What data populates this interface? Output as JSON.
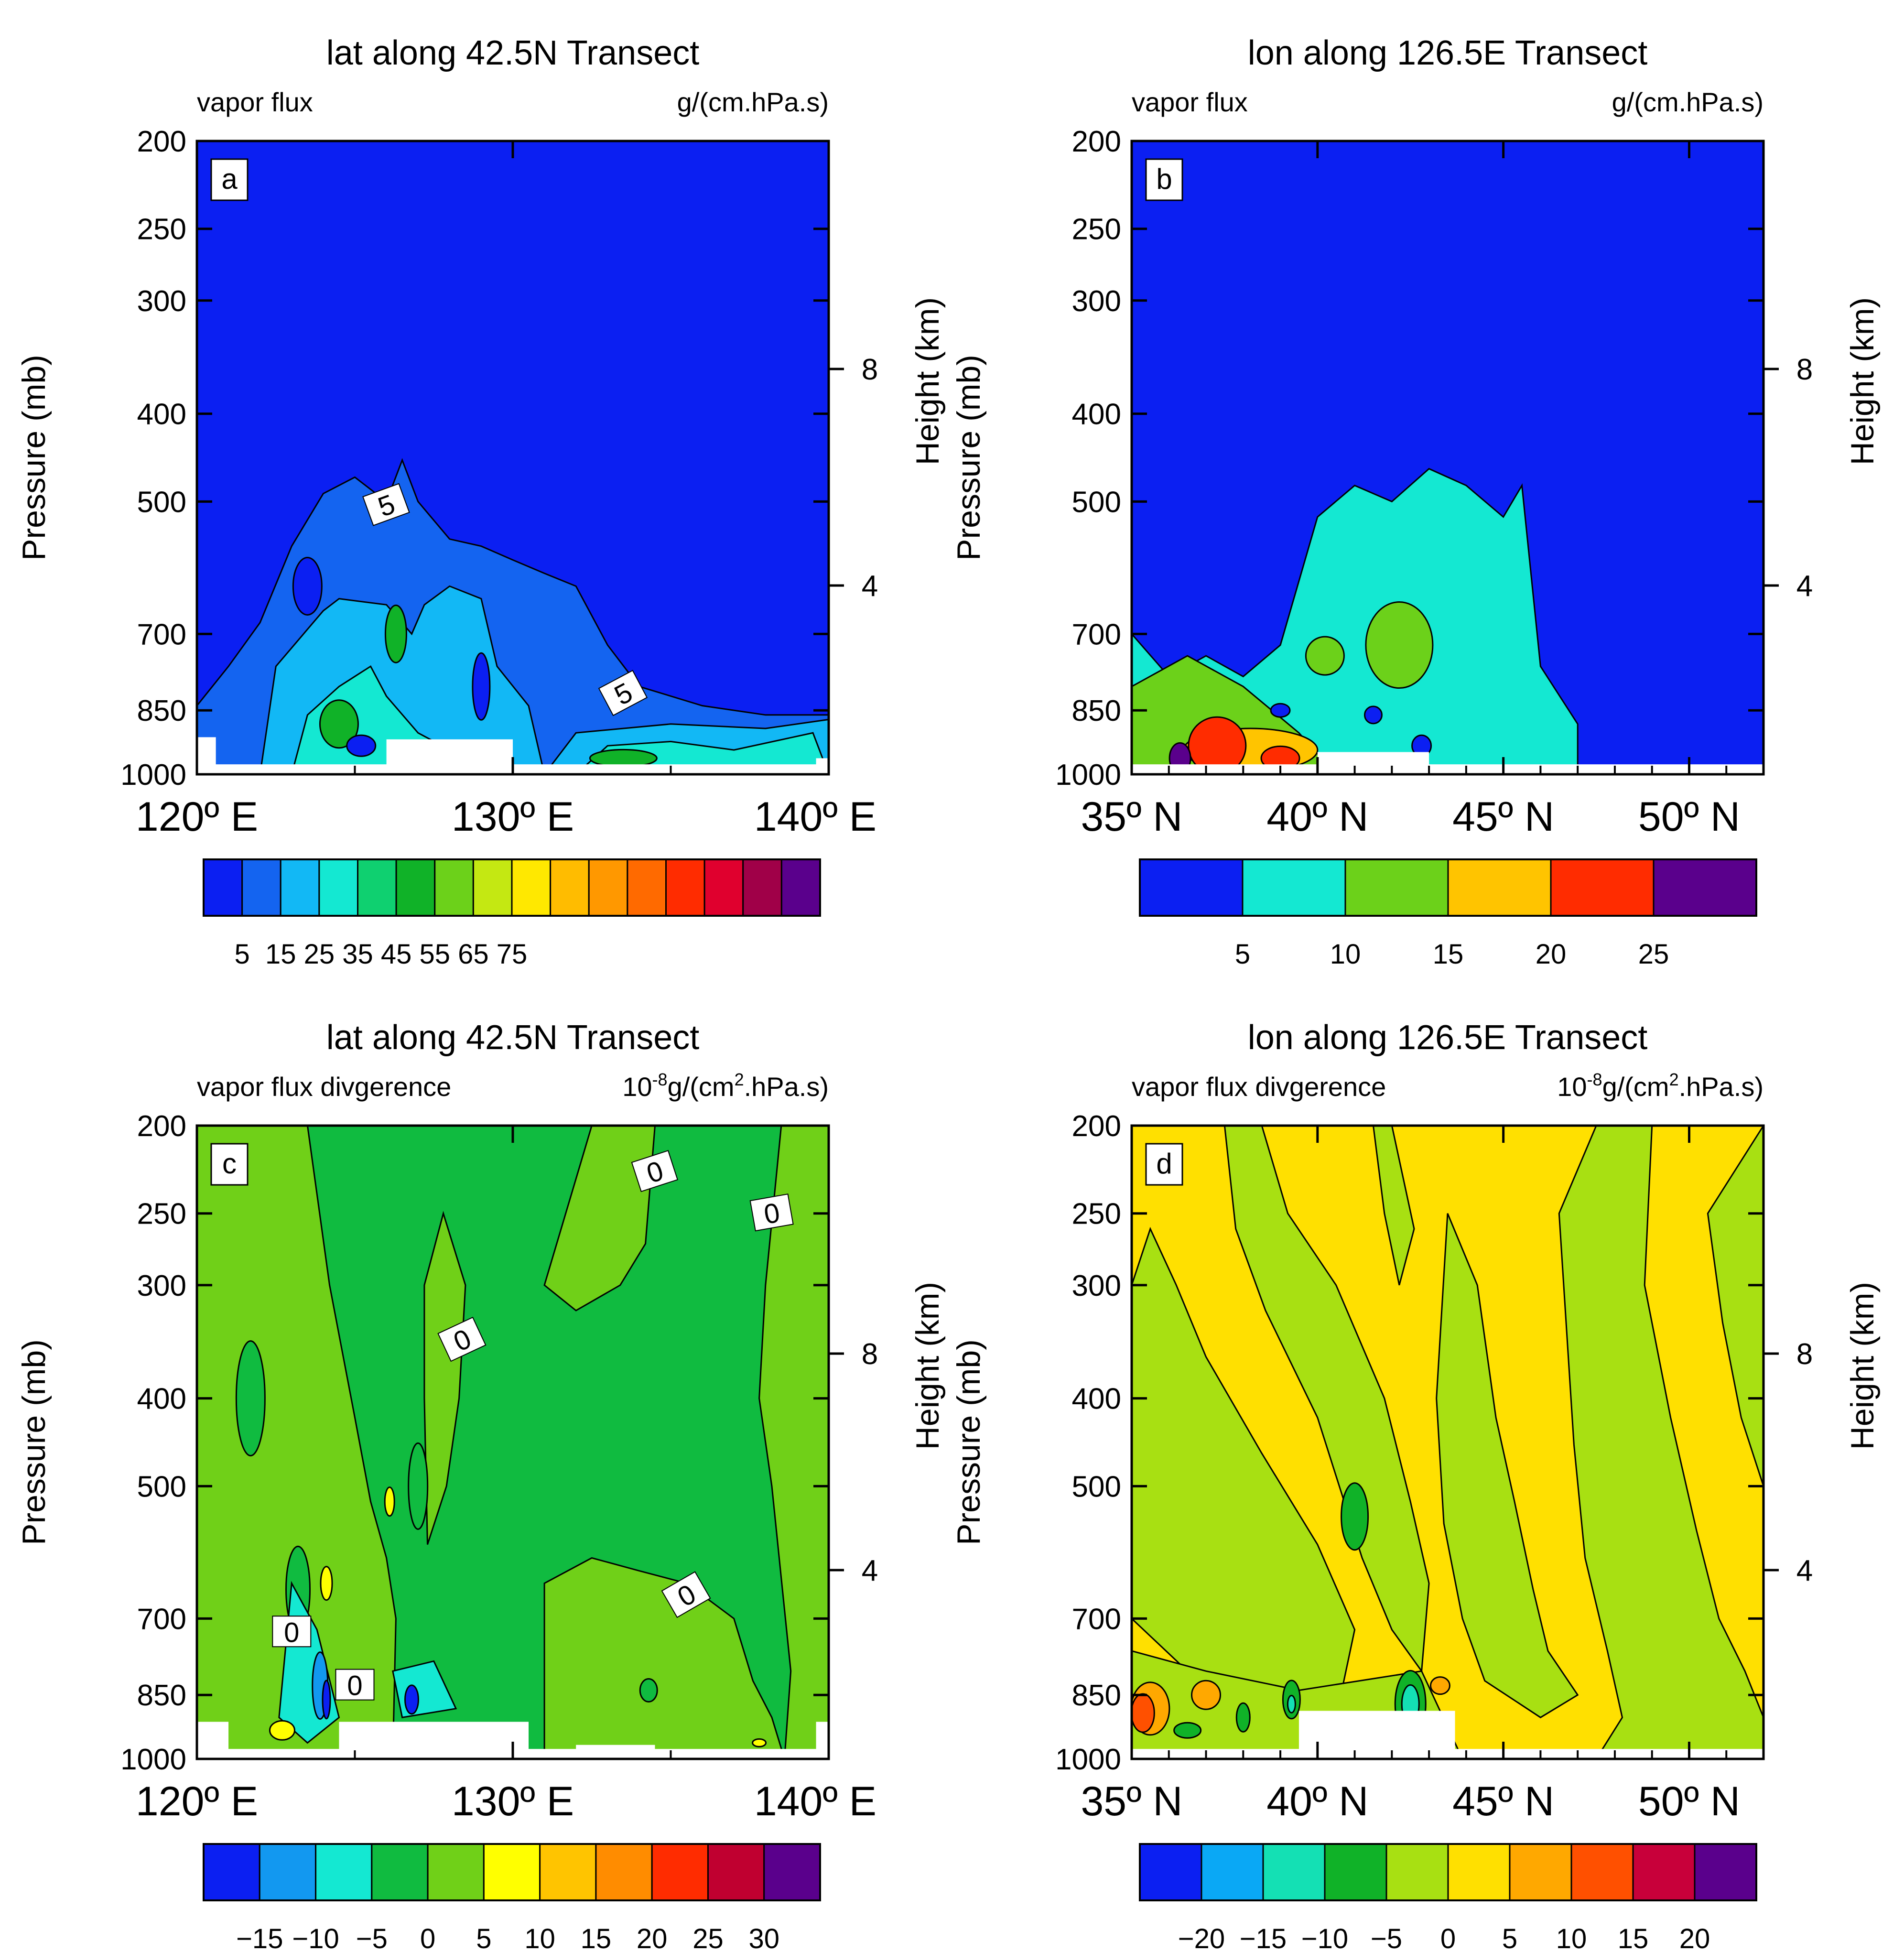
{
  "chart_data": [
    {
      "panel_id": "a",
      "type": "contour",
      "title": "lat along 42.5N Transect",
      "left_label": "vapor flux",
      "right_label": "g/(cm.hPa.s)",
      "xlabel": "",
      "ylabel": "Pressure (mb)",
      "y2label": "Height (km)",
      "x_axis": {
        "ticks": [
          "120º E",
          "130º E",
          "140º E"
        ],
        "range": [
          120,
          140
        ]
      },
      "y_axis": {
        "ticks": [
          200,
          250,
          300,
          400,
          500,
          700,
          850,
          1000
        ],
        "range": [
          1000,
          200
        ],
        "scale": "log"
      },
      "y2_axis": {
        "ticks": [
          4,
          8
        ]
      },
      "contour_labels": [
        "5",
        "5"
      ],
      "colorbar": {
        "labels": [
          "5",
          "15",
          "25",
          "35",
          "45",
          "55",
          "65",
          "75"
        ],
        "colors": [
          "#0b1ff2",
          "#1464f0",
          "#12b8f5",
          "#14e8d2",
          "#0fd070",
          "#10b228",
          "#6cd11a",
          "#c4e812",
          "#ffe800",
          "#ffbc00",
          "#ff9800",
          "#ff6a00",
          "#ff2c00",
          "#e0002e",
          "#a00048",
          "#5a008c"
        ]
      },
      "fill_profile": [
        {
          "lon": 120,
          "top_p": 840
        },
        {
          "lon": 121,
          "top_p": 760
        },
        {
          "lon": 122,
          "top_p": 680
        },
        {
          "lon": 123,
          "top_p": 560
        },
        {
          "lon": 124,
          "top_p": 490
        },
        {
          "lon": 125,
          "top_p": 470
        },
        {
          "lon": 126,
          "top_p": 500
        },
        {
          "lon": 126.5,
          "top_p": 450
        },
        {
          "lon": 127,
          "top_p": 500
        },
        {
          "lon": 128,
          "top_p": 550
        },
        {
          "lon": 129,
          "top_p": 560
        },
        {
          "lon": 130,
          "top_p": 580
        },
        {
          "lon": 131,
          "top_p": 600
        },
        {
          "lon": 132,
          "top_p": 620
        },
        {
          "lon": 133,
          "top_p": 720
        },
        {
          "lon": 134,
          "top_p": 800
        },
        {
          "lon": 136,
          "top_p": 840
        },
        {
          "lon": 138,
          "top_p": 860
        },
        {
          "lon": 140,
          "top_p": 860
        }
      ]
    },
    {
      "panel_id": "b",
      "type": "contour",
      "title": "lon along 126.5E Transect",
      "left_label": "vapor flux",
      "right_label": "g/(cm.hPa.s)",
      "xlabel": "",
      "ylabel": "Pressure (mb)",
      "y2label": "Height (km)",
      "x_axis": {
        "ticks": [
          "35º N",
          "40º N",
          "45º N",
          "50º N"
        ],
        "range": [
          35,
          52
        ]
      },
      "y_axis": {
        "ticks": [
          200,
          250,
          300,
          400,
          500,
          700,
          850,
          1000
        ],
        "range": [
          1000,
          200
        ],
        "scale": "log"
      },
      "y2_axis": {
        "ticks": [
          4,
          8
        ]
      },
      "contour_labels": [],
      "colorbar": {
        "labels": [
          "5",
          "10",
          "15",
          "20",
          "25"
        ],
        "colors": [
          "#0b1ff2",
          "#14e8d2",
          "#6cd11a",
          "#ffc400",
          "#ff2c00",
          "#5a008c"
        ]
      },
      "fill_profile": [
        {
          "lat": 35,
          "top_p": 700
        },
        {
          "lat": 36,
          "top_p": 780
        },
        {
          "lat": 37,
          "top_p": 740
        },
        {
          "lat": 38,
          "top_p": 780
        },
        {
          "lat": 39,
          "top_p": 720
        },
        {
          "lat": 40,
          "top_p": 520
        },
        {
          "lat": 41,
          "top_p": 480
        },
        {
          "lat": 42,
          "top_p": 500
        },
        {
          "lat": 43,
          "top_p": 460
        },
        {
          "lat": 44,
          "top_p": 480
        },
        {
          "lat": 45,
          "top_p": 520
        },
        {
          "lat": 45.5,
          "top_p": 480
        },
        {
          "lat": 46,
          "top_p": 760
        },
        {
          "lat": 47,
          "top_p": 880
        }
      ]
    },
    {
      "panel_id": "c",
      "type": "contour",
      "title": "lat along 42.5N Transect",
      "left_label": "vapor flux divgerence",
      "right_label_base": "10",
      "right_label_exp": "-8",
      "right_label_mid": "g/(cm",
      "right_label_exp2": "2",
      "right_label_end": ".hPa.s)",
      "xlabel": "",
      "ylabel": "Pressure (mb)",
      "y2label": "Height (km)",
      "x_axis": {
        "ticks": [
          "120º E",
          "130º E",
          "140º E"
        ],
        "range": [
          120,
          140
        ]
      },
      "y_axis": {
        "ticks": [
          200,
          250,
          300,
          400,
          500,
          700,
          850,
          1000
        ],
        "range": [
          1000,
          200
        ],
        "scale": "log"
      },
      "y2_axis": {
        "ticks": [
          4,
          8
        ]
      },
      "contour_labels": [
        "0",
        "0",
        "0",
        "0",
        "0",
        "0"
      ],
      "colorbar": {
        "labels": [
          "−15",
          "−10",
          "−5",
          "0",
          "5",
          "10",
          "15",
          "20",
          "25",
          "30"
        ],
        "colors": [
          "#0b1ff2",
          "#1298f0",
          "#14e8d2",
          "#10bb40",
          "#70d018",
          "#ffff00",
          "#ffc400",
          "#ff8c00",
          "#ff2c00",
          "#c00030",
          "#5a008c"
        ]
      }
    },
    {
      "panel_id": "d",
      "type": "contour",
      "title": "lon along 126.5E Transect",
      "left_label": "vapor flux divgerence",
      "right_label_base": "10",
      "right_label_exp": "-8",
      "right_label_mid": "g/(cm",
      "right_label_exp2": "2",
      "right_label_end": ".hPa.s)",
      "xlabel": "",
      "ylabel": "Pressure (mb)",
      "y2label": "Height (km)",
      "x_axis": {
        "ticks": [
          "35º N",
          "40º N",
          "45º N",
          "50º N"
        ],
        "range": [
          35,
          52
        ]
      },
      "y_axis": {
        "ticks": [
          200,
          250,
          300,
          400,
          500,
          700,
          850,
          1000
        ],
        "range": [
          1000,
          200
        ],
        "scale": "log"
      },
      "y2_axis": {
        "ticks": [
          4,
          8
        ]
      },
      "contour_labels": [],
      "colorbar": {
        "labels": [
          "−20",
          "−15",
          "−10",
          "−5",
          "0",
          "5",
          "10",
          "15",
          "20"
        ],
        "colors": [
          "#0b1ff2",
          "#0aa8f5",
          "#14e0b4",
          "#10b228",
          "#a8e012",
          "#ffe000",
          "#ffa800",
          "#ff5000",
          "#c8003a",
          "#5a008c"
        ]
      }
    }
  ]
}
